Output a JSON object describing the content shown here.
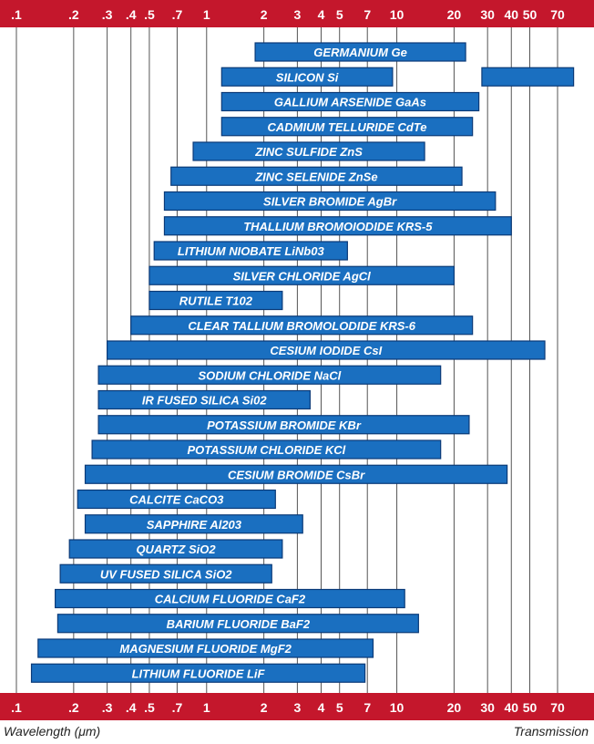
{
  "chart_data": {
    "type": "bar",
    "orientation": "horizontal",
    "x_scale": "log",
    "xlim": [
      0.1,
      90
    ],
    "xlabel": "Wavelength (μm)",
    "legend_label": "Transmission",
    "grid": true,
    "tick_values": [
      0.1,
      0.2,
      0.3,
      0.4,
      0.5,
      0.7,
      1,
      2,
      3,
      4,
      5,
      7,
      10,
      20,
      30,
      40,
      50,
      70
    ],
    "tick_labels": [
      ".1",
      ".2",
      ".3",
      ".4",
      ".5",
      ".7",
      "1",
      "2",
      "3",
      "4",
      "5",
      "7",
      "10",
      "20",
      "30",
      "40",
      "50",
      "70"
    ],
    "bars": [
      {
        "label": "GERMANIUM Ge",
        "ranges": [
          [
            1.8,
            23
          ]
        ]
      },
      {
        "label": "SILICON Si",
        "ranges": [
          [
            1.2,
            9.5
          ],
          [
            28,
            85
          ]
        ]
      },
      {
        "label": "GALLIUM ARSENIDE GaAs",
        "ranges": [
          [
            1.2,
            27
          ]
        ]
      },
      {
        "label": "CADMIUM TELLURIDE CdTe",
        "ranges": [
          [
            1.2,
            25
          ]
        ]
      },
      {
        "label": "ZINC SULFIDE ZnS",
        "ranges": [
          [
            0.85,
            14
          ]
        ]
      },
      {
        "label": "ZINC SELENIDE ZnSe",
        "ranges": [
          [
            0.65,
            22
          ]
        ]
      },
      {
        "label": "SILVER BROMIDE AgBr",
        "ranges": [
          [
            0.6,
            33
          ]
        ]
      },
      {
        "label": "THALLIUM BROMOIODIDE KRS-5",
        "ranges": [
          [
            0.6,
            40
          ]
        ]
      },
      {
        "label": "LITHIUM NIOBATE LiNb03",
        "ranges": [
          [
            0.53,
            5.5
          ]
        ]
      },
      {
        "label": "SILVER CHLORIDE AgCl",
        "ranges": [
          [
            0.5,
            20
          ]
        ]
      },
      {
        "label": "RUTILE T102",
        "ranges": [
          [
            0.5,
            2.5
          ]
        ]
      },
      {
        "label": "CLEAR TALLIUM BROMOLODIDE KRS-6",
        "ranges": [
          [
            0.4,
            25
          ]
        ]
      },
      {
        "label": "CESIUM IODIDE CsI",
        "ranges": [
          [
            0.3,
            60
          ]
        ]
      },
      {
        "label": "SODIUM CHLORIDE NaCl",
        "ranges": [
          [
            0.27,
            17
          ]
        ]
      },
      {
        "label": "IR FUSED SILICA Si02",
        "ranges": [
          [
            0.27,
            3.5
          ]
        ]
      },
      {
        "label": "POTASSIUM BROMIDE KBr",
        "ranges": [
          [
            0.27,
            24
          ]
        ]
      },
      {
        "label": "POTASSIUM CHLORIDE KCl",
        "ranges": [
          [
            0.25,
            17
          ]
        ]
      },
      {
        "label": "CESIUM BROMIDE CsBr",
        "ranges": [
          [
            0.23,
            38
          ]
        ]
      },
      {
        "label": "CALCITE CaCO3",
        "ranges": [
          [
            0.21,
            2.3
          ]
        ]
      },
      {
        "label": "SAPPHIRE Al203",
        "ranges": [
          [
            0.23,
            3.2
          ]
        ]
      },
      {
        "label": "QUARTZ SiO2",
        "ranges": [
          [
            0.19,
            2.5
          ]
        ]
      },
      {
        "label": "UV FUSED SILICA SiO2",
        "ranges": [
          [
            0.17,
            2.2
          ]
        ]
      },
      {
        "label": "CALCIUM FLUORIDE CaF2",
        "ranges": [
          [
            0.16,
            11
          ]
        ]
      },
      {
        "label": "BARIUM FLUORIDE BaF2",
        "ranges": [
          [
            0.165,
            13
          ]
        ]
      },
      {
        "label": "MAGNESIUM FLUORIDE MgF2",
        "ranges": [
          [
            0.13,
            7.5
          ]
        ]
      },
      {
        "label": "LITHIUM FLUORIDE LiF",
        "ranges": [
          [
            0.12,
            6.8
          ]
        ]
      }
    ]
  },
  "colors": {
    "band": "#c4172c",
    "bar_fill": "#1a6fc0",
    "bar_stroke": "#0b3a78",
    "grid": "#555555"
  }
}
